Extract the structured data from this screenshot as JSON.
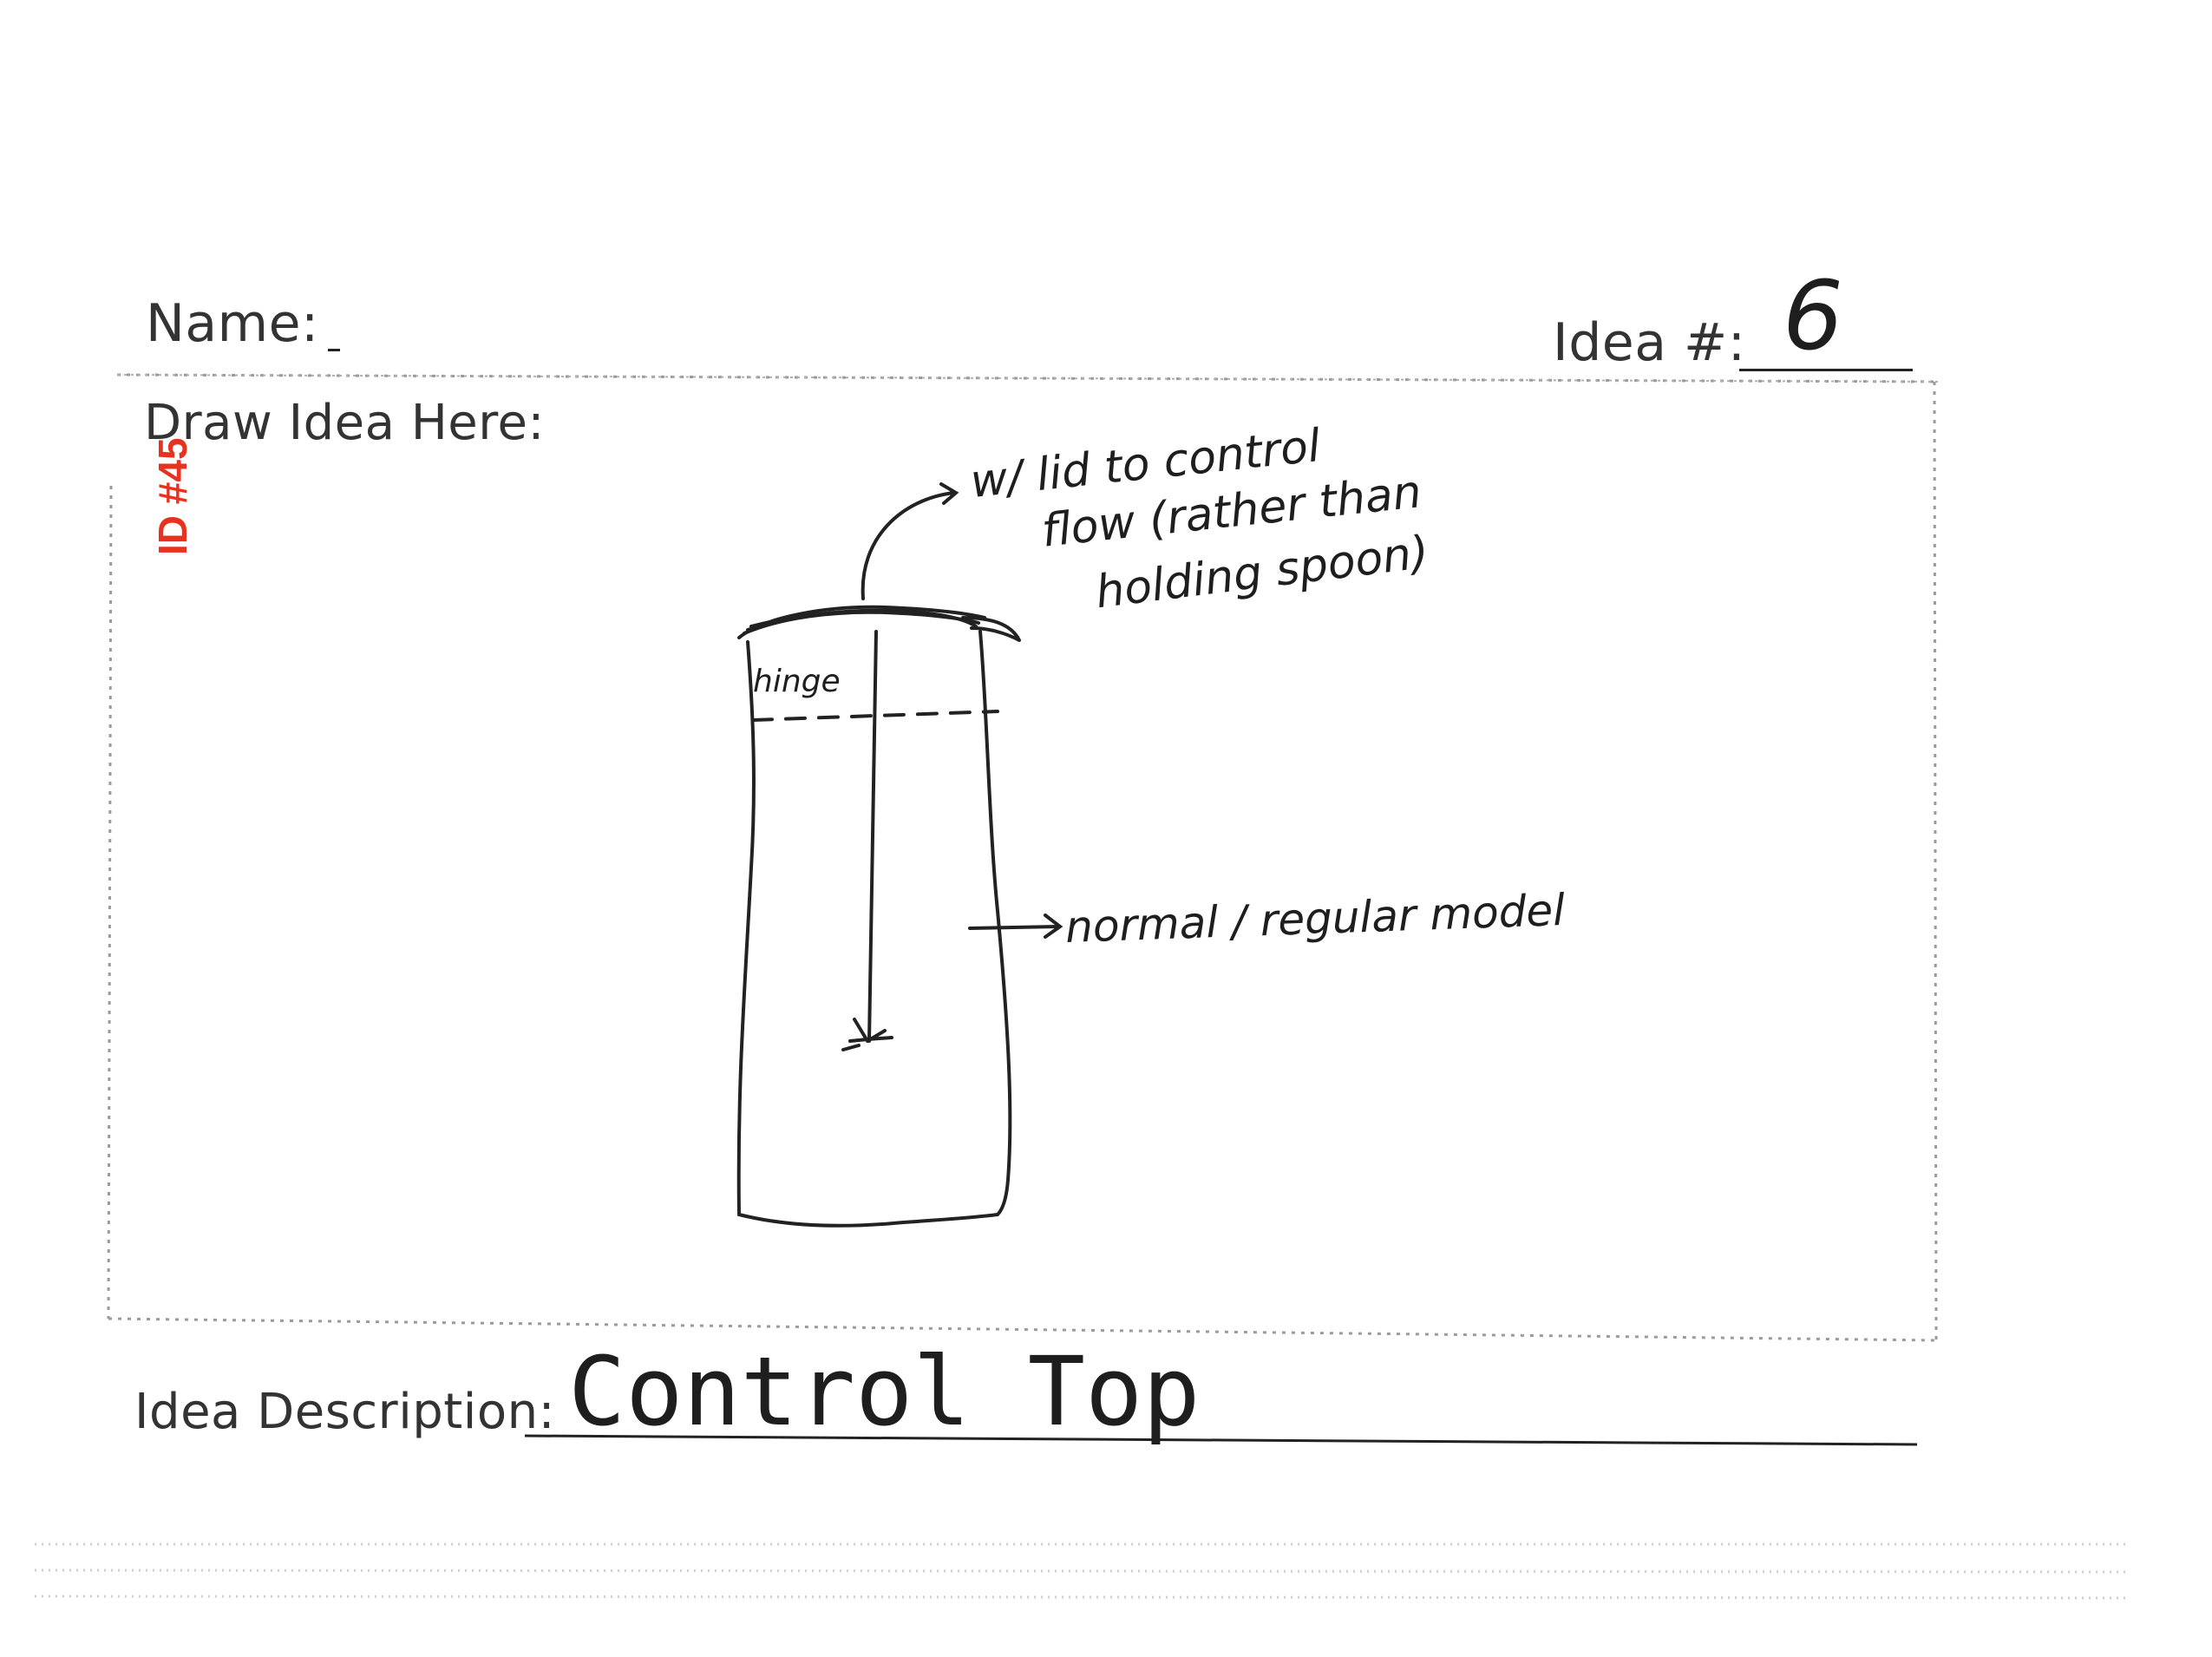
{
  "form": {
    "name_label": "Name:",
    "idea_number_label": "Idea #:",
    "draw_label": "Draw Idea Here:",
    "description_label": "Idea Description:"
  },
  "handwriting": {
    "idea_number": "6",
    "description": "Control Top",
    "annotation_lid": [
      "w/ lid to control",
      "flow (rather than",
      "holding spoon)"
    ],
    "annotation_hinge": "hinge",
    "annotation_model": "normal / regular model"
  },
  "stamp": {
    "id_text": "ID #45",
    "color": "#e8321f"
  }
}
